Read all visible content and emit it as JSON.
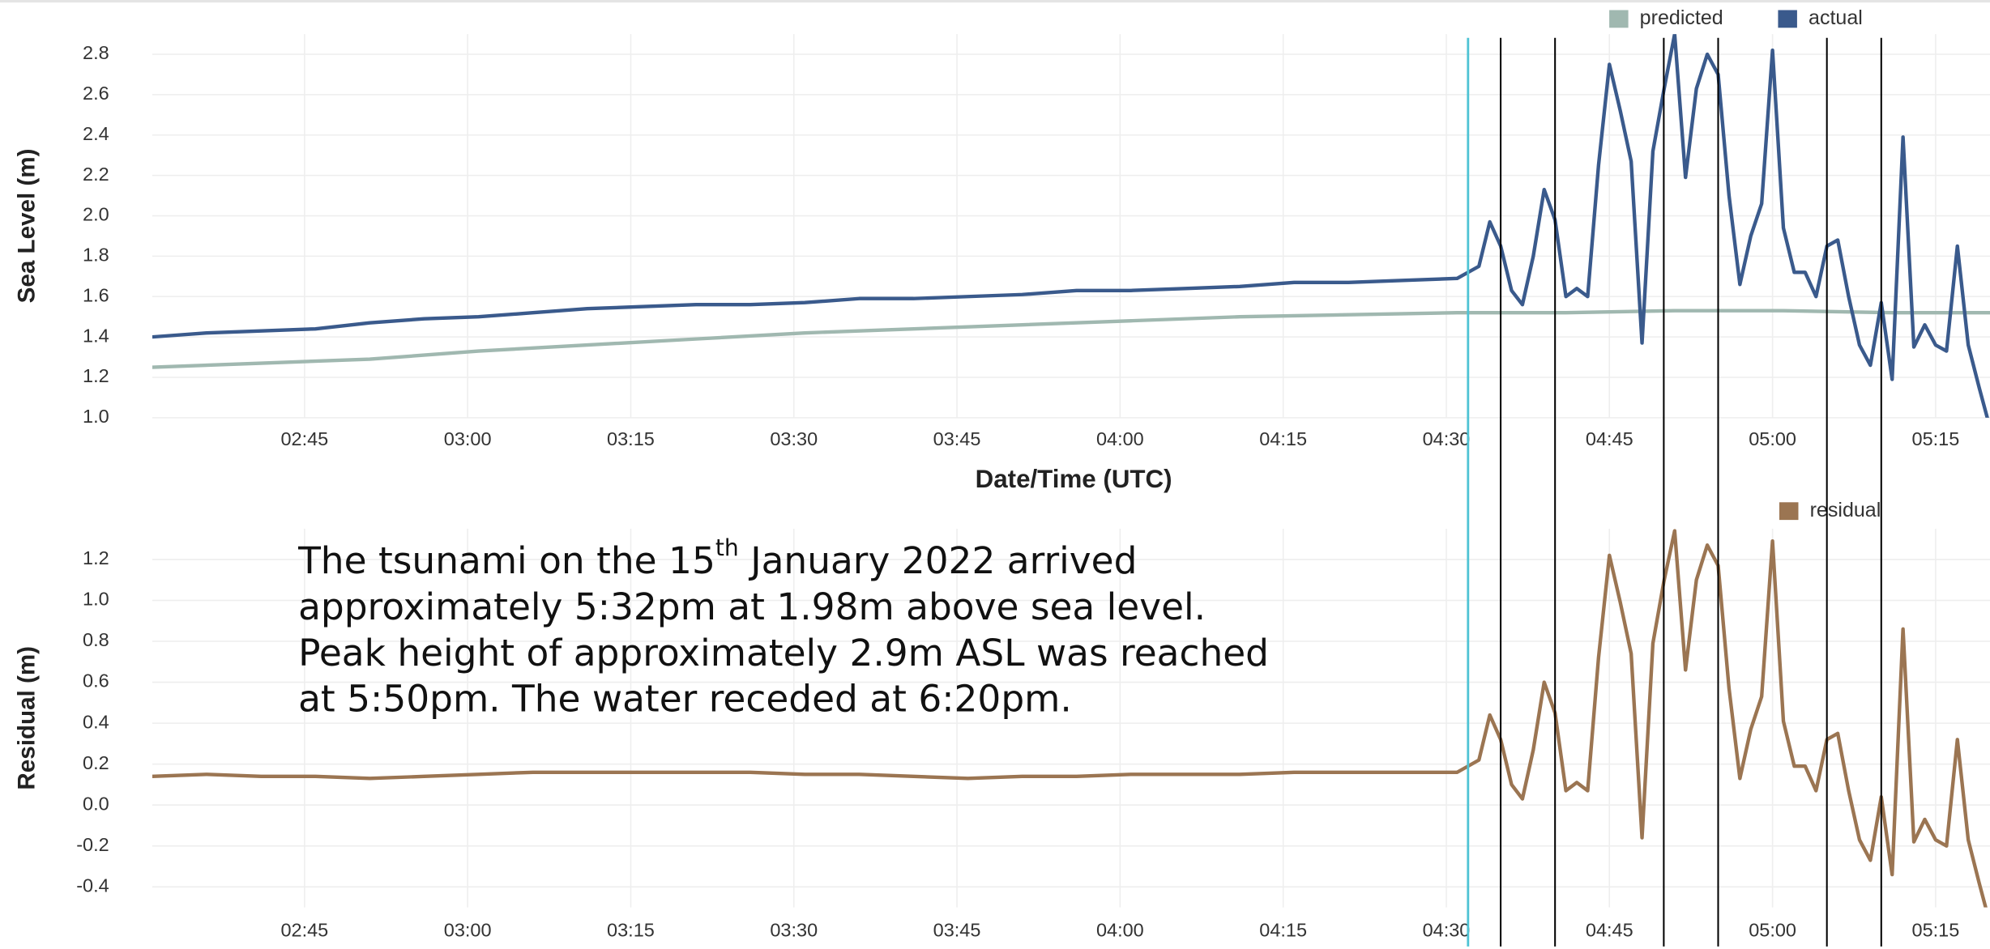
{
  "chart_data": [
    {
      "type": "line",
      "ylabel": "Sea Level (m)",
      "xlabel": "Date/Time (UTC)",
      "grid": true,
      "xlim": [
        "02:31",
        "05:20"
      ],
      "xticks": [
        "02:45",
        "03:00",
        "03:15",
        "03:30",
        "03:45",
        "04:00",
        "04:15",
        "04:30",
        "04:45",
        "05:00",
        "05:15"
      ],
      "ylim": [
        1.0,
        2.9
      ],
      "yticks": [
        {
          "value": 1.0,
          "label": "1.0"
        },
        1.2,
        1.4,
        1.6,
        1.8,
        {
          "value": 2.0,
          "label": "2.0"
        },
        2.2,
        2.4,
        2.6,
        2.8
      ],
      "series": [
        {
          "name": "predicted",
          "color": "#a0b8b0",
          "x": [
            "02:31",
            "02:41",
            "02:51",
            "03:01",
            "03:11",
            "03:21",
            "03:31",
            "03:41",
            "03:51",
            "04:01",
            "04:11",
            "04:21",
            "04:31",
            "04:41",
            "04:51",
            "05:01",
            "05:11",
            "05:20"
          ],
          "values": [
            1.25,
            1.27,
            1.29,
            1.33,
            1.36,
            1.39,
            1.42,
            1.44,
            1.46,
            1.48,
            1.5,
            1.51,
            1.52,
            1.52,
            1.53,
            1.53,
            1.52,
            1.52
          ]
        },
        {
          "name": "actual",
          "color": "#3a5a8c",
          "x": [
            "02:31",
            "02:36",
            "02:41",
            "02:46",
            "02:51",
            "02:56",
            "03:01",
            "03:06",
            "03:11",
            "03:16",
            "03:21",
            "03:26",
            "03:31",
            "03:36",
            "03:41",
            "03:46",
            "03:51",
            "03:56",
            "04:01",
            "04:06",
            "04:11",
            "04:16",
            "04:21",
            "04:26",
            "04:31",
            "04:33",
            "04:34",
            "04:35",
            "04:36",
            "04:37",
            "04:38",
            "04:39",
            "04:40",
            "04:41",
            "04:42",
            "04:43",
            "04:44",
            "04:45",
            "04:46",
            "04:47",
            "04:48",
            "04:49",
            "04:50",
            "04:51",
            "04:52",
            "04:53",
            "04:54",
            "04:55",
            "04:56",
            "04:57",
            "04:58",
            "04:59",
            "05:00",
            "05:01",
            "05:02",
            "05:03",
            "05:04",
            "05:05",
            "05:06",
            "05:07",
            "05:08",
            "05:09",
            "05:10",
            "05:11",
            "05:12",
            "05:13",
            "05:14",
            "05:15",
            "05:16",
            "05:17",
            "05:18",
            "05:19",
            "05:20"
          ],
          "values": [
            1.4,
            1.42,
            1.43,
            1.44,
            1.47,
            1.49,
            1.5,
            1.52,
            1.54,
            1.55,
            1.56,
            1.56,
            1.57,
            1.59,
            1.59,
            1.6,
            1.61,
            1.63,
            1.63,
            1.64,
            1.65,
            1.67,
            1.67,
            1.68,
            1.69,
            1.75,
            1.97,
            1.85,
            1.63,
            1.56,
            1.8,
            2.13,
            1.98,
            1.6,
            1.64,
            1.6,
            2.25,
            2.75,
            2.52,
            2.27,
            1.37,
            2.32,
            2.62,
            2.9,
            2.19,
            2.63,
            2.8,
            2.7,
            2.1,
            1.66,
            1.9,
            2.06,
            2.82,
            1.94,
            1.72,
            1.72,
            1.6,
            1.85,
            1.88,
            1.6,
            1.36,
            1.26,
            1.57,
            1.19,
            2.39,
            1.35,
            1.46,
            1.36,
            1.33,
            1.85,
            1.36,
            1.15,
            0.95
          ]
        }
      ]
    },
    {
      "type": "line",
      "ylabel": "Residual (m)",
      "grid": true,
      "xlim": [
        "02:31",
        "05:20"
      ],
      "xticks": [
        "02:45",
        "03:00",
        "03:15",
        "03:30",
        "03:45",
        "04:00",
        "04:15",
        "04:30",
        "04:45",
        "05:00",
        "05:15"
      ],
      "ylim": [
        -0.5,
        1.35
      ],
      "yticks": [
        -0.4,
        -0.2,
        {
          "value": 0.0,
          "label": "0.0"
        },
        0.2,
        0.4,
        0.6,
        0.8,
        {
          "value": 1.0,
          "label": "1.0"
        },
        1.2
      ],
      "annotation": [
        [
          "The tsunami on the 15",
          "th",
          " January 2022 arrived"
        ],
        [
          "approximately 5:32pm at 1.98m above sea level."
        ],
        [
          "Peak height of approximately 2.9m ASL was reached"
        ],
        [
          "at 5:50pm. The water receded at 6:20pm."
        ]
      ],
      "series": [
        {
          "name": "residual",
          "color": "#9b7552",
          "x": [
            "02:31",
            "02:36",
            "02:41",
            "02:46",
            "02:51",
            "02:56",
            "03:01",
            "03:06",
            "03:11",
            "03:16",
            "03:21",
            "03:26",
            "03:31",
            "03:36",
            "03:41",
            "03:46",
            "03:51",
            "03:56",
            "04:01",
            "04:06",
            "04:11",
            "04:16",
            "04:21",
            "04:26",
            "04:31",
            "04:33",
            "04:34",
            "04:35",
            "04:36",
            "04:37",
            "04:38",
            "04:39",
            "04:40",
            "04:41",
            "04:42",
            "04:43",
            "04:44",
            "04:45",
            "04:46",
            "04:47",
            "04:48",
            "04:49",
            "04:50",
            "04:51",
            "04:52",
            "04:53",
            "04:54",
            "04:55",
            "04:56",
            "04:57",
            "04:58",
            "04:59",
            "05:00",
            "05:01",
            "05:02",
            "05:03",
            "05:04",
            "05:05",
            "05:06",
            "05:07",
            "05:08",
            "05:09",
            "05:10",
            "05:11",
            "05:12",
            "05:13",
            "05:14",
            "05:15",
            "05:16",
            "05:17",
            "05:18",
            "05:19",
            "05:20"
          ],
          "values": [
            0.14,
            0.15,
            0.14,
            0.14,
            0.13,
            0.14,
            0.15,
            0.16,
            0.16,
            0.16,
            0.16,
            0.16,
            0.15,
            0.15,
            0.14,
            0.13,
            0.14,
            0.14,
            0.15,
            0.15,
            0.15,
            0.16,
            0.16,
            0.16,
            0.16,
            0.22,
            0.44,
            0.32,
            0.1,
            0.03,
            0.27,
            0.6,
            0.45,
            0.07,
            0.11,
            0.07,
            0.72,
            1.22,
            0.99,
            0.74,
            -0.16,
            0.79,
            1.09,
            1.34,
            0.66,
            1.1,
            1.27,
            1.17,
            0.57,
            0.13,
            0.37,
            0.53,
            1.29,
            0.41,
            0.19,
            0.19,
            0.07,
            0.32,
            0.35,
            0.07,
            -0.17,
            -0.27,
            0.04,
            -0.34,
            0.86,
            -0.18,
            -0.07,
            -0.17,
            -0.2,
            0.32,
            -0.17,
            -0.38,
            -0.58
          ]
        }
      ]
    }
  ],
  "markers": {
    "x": [
      "04:32",
      "04:35",
      "04:40",
      "04:50",
      "04:55",
      "05:05",
      "05:10"
    ],
    "colors": [
      "#4fc3d4",
      "#000000",
      "#000000",
      "#000000",
      "#000000",
      "#000000",
      "#000000"
    ]
  }
}
